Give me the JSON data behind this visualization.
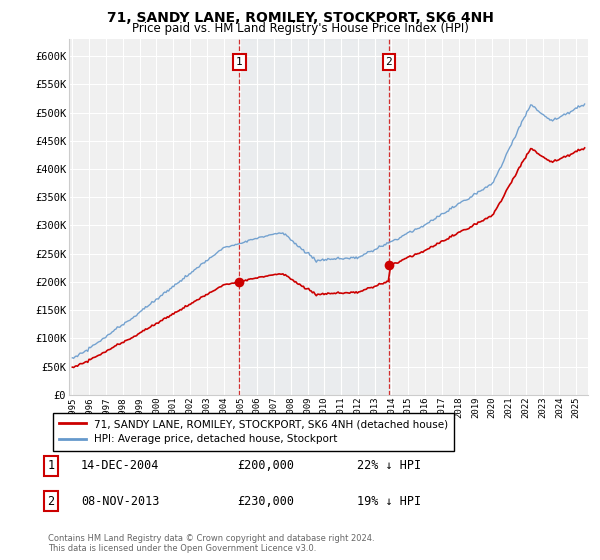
{
  "title": "71, SANDY LANE, ROMILEY, STOCKPORT, SK6 4NH",
  "subtitle": "Price paid vs. HM Land Registry's House Price Index (HPI)",
  "ylim": [
    0,
    625000
  ],
  "yticks": [
    0,
    50000,
    100000,
    150000,
    200000,
    250000,
    300000,
    350000,
    400000,
    450000,
    500000,
    550000,
    600000
  ],
  "ytick_labels": [
    "£0",
    "£50K",
    "£100K",
    "£150K",
    "£200K",
    "£250K",
    "£300K",
    "£350K",
    "£400K",
    "£450K",
    "£500K",
    "£550K",
    "£600K"
  ],
  "hpi_color": "#6699cc",
  "price_color": "#cc0000",
  "vline_color": "#cc0000",
  "background_color": "#e8eef5",
  "legend_label_price": "71, SANDY LANE, ROMILEY, STOCKPORT, SK6 4NH (detached house)",
  "legend_label_hpi": "HPI: Average price, detached house, Stockport",
  "annotation1_label": "1",
  "annotation1_date": "14-DEC-2004",
  "annotation1_price": "£200,000",
  "annotation1_pct": "22% ↓ HPI",
  "annotation2_label": "2",
  "annotation2_date": "08-NOV-2013",
  "annotation2_price": "£230,000",
  "annotation2_pct": "19% ↓ HPI",
  "footer": "Contains HM Land Registry data © Crown copyright and database right 2024.\nThis data is licensed under the Open Government Licence v3.0.",
  "sale1_year": 2004.95,
  "sale2_year": 2013.85,
  "sale1_value": 200000,
  "sale2_value": 230000
}
